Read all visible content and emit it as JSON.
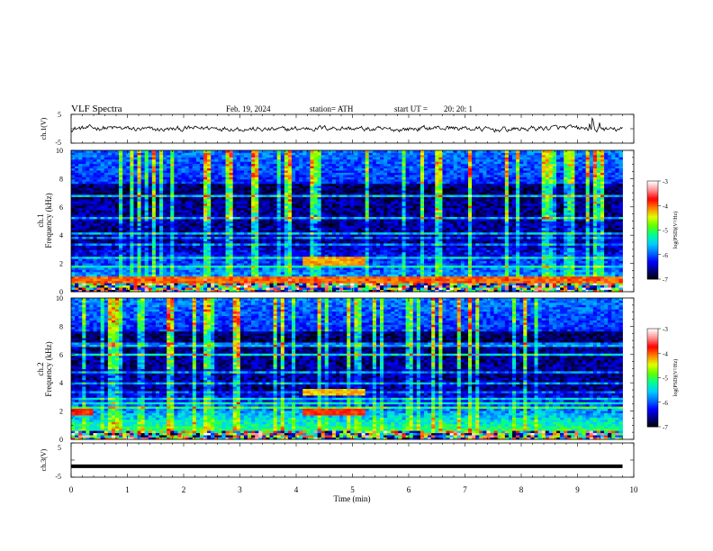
{
  "header": {
    "title": "VLF Spectra",
    "date": "Feb. 19, 2024",
    "station": "station= ATH",
    "start_label": "start  UT  =",
    "start_time": "20: 20: 1"
  },
  "chart_data": [
    {
      "type": "line",
      "name": "ch1-waveform",
      "ylabel": "ch.1(V)",
      "ylim": [
        -5,
        5
      ],
      "y_ticklabels": [
        "5",
        "-5"
      ],
      "xlim": [
        0,
        10
      ],
      "baseline_value": 0,
      "description_values": "continuous noisy trace around 0 V with occasional spikes near 9.3 min"
    },
    {
      "type": "heatmap",
      "name": "ch1-spectrogram",
      "ylabel": "ch.1\nFrequency (kHz)",
      "ylabel_line1": "ch.1",
      "ylabel_line2": "Frequency (kHz)",
      "ylim": [
        0,
        10
      ],
      "y_ticklabels": [
        "0",
        "2",
        "4",
        "6",
        "8",
        "10"
      ],
      "xlim": [
        0,
        10
      ],
      "data_end_min": 9.8,
      "colorbar": {
        "label": "log(PSD)(V²/Hz)",
        "range": [
          -7,
          -3
        ],
        "ticklabels": [
          "-3",
          "-4",
          "-5",
          "-6",
          "-7"
        ]
      },
      "features": [
        {
          "kind": "band",
          "freq_khz": 2.2,
          "t_start": 4.1,
          "t_end": 5.2,
          "level": -4.2
        },
        {
          "kind": "band",
          "freq_khz": 0.8,
          "t_start": 0,
          "t_end": 9.8,
          "level": -4.0
        }
      ]
    },
    {
      "type": "heatmap",
      "name": "ch2-spectrogram",
      "ylabel_line1": "ch.2",
      "ylabel_line2": "Frequency (kHz)",
      "ylim": [
        0,
        10
      ],
      "y_ticklabels": [
        "0",
        "2",
        "4",
        "6",
        "8",
        "10"
      ],
      "xlim": [
        0,
        10
      ],
      "data_end_min": 9.8,
      "colorbar": {
        "label": "log(PSD)(V²/Hz)",
        "range": [
          -7,
          -3
        ],
        "ticklabels": [
          "-3",
          "-4",
          "-5",
          "-6",
          "-7"
        ]
      },
      "features": [
        {
          "kind": "band",
          "freq_khz": 2.0,
          "t_start": 0.0,
          "t_end": 0.4,
          "level": -3.8
        },
        {
          "kind": "band",
          "freq_khz": 2.0,
          "t_start": 4.1,
          "t_end": 5.2,
          "level": -3.8
        },
        {
          "kind": "band",
          "freq_khz": 3.3,
          "t_start": 4.1,
          "t_end": 5.2,
          "level": -4.3
        }
      ]
    },
    {
      "type": "line",
      "name": "ch3-waveform",
      "ylabel": "ch.3(V)",
      "ylim": [
        -5,
        5
      ],
      "y_ticklabels": [
        "5",
        "-5"
      ],
      "xlim": [
        0,
        10
      ],
      "baseline_value": -1.8,
      "x_ticklabels": [
        "0",
        "1",
        "2",
        "3",
        "4",
        "5",
        "6",
        "7",
        "8",
        "9",
        "10"
      ],
      "xlabel": "Time  (min)"
    }
  ],
  "colors": {
    "cmap": [
      "#000000",
      "#000080",
      "#0000ff",
      "#0070ff",
      "#00d0ff",
      "#00ff90",
      "#60ff00",
      "#e0ff00",
      "#ff8000",
      "#ff0000",
      "#ff9090",
      "#ffffff"
    ]
  }
}
